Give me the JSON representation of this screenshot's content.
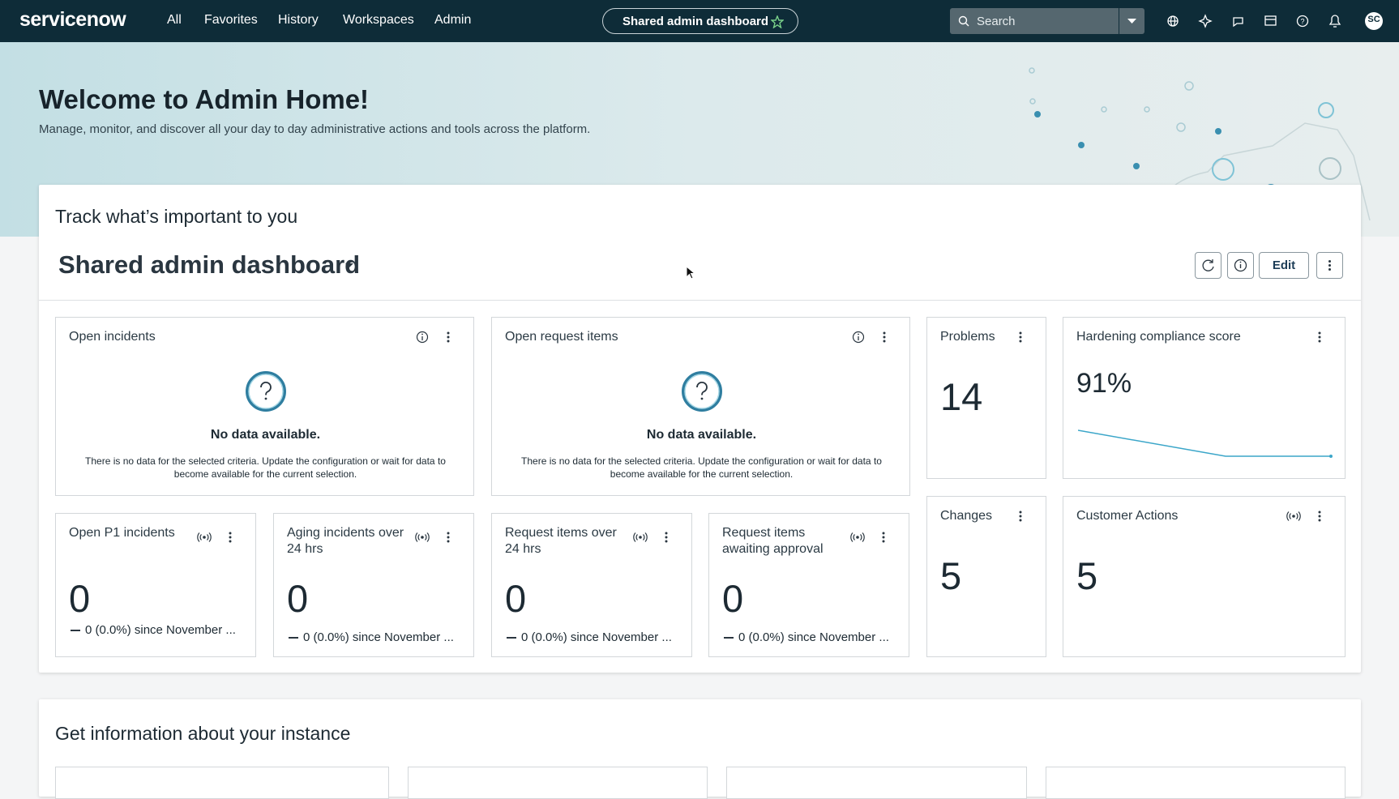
{
  "nav": {
    "logo": "servicenow",
    "menu": [
      "All",
      "Favorites",
      "History",
      "Workspaces",
      "Admin"
    ],
    "current_page": "Shared admin dashboard",
    "search_placeholder": "Search",
    "avatar": "SC"
  },
  "hero": {
    "title": "Welcome to Admin Home!",
    "subtitle": "Manage, monitor, and discover all your day to day administrative actions and tools across the platform."
  },
  "tracking": {
    "heading": "Track what’s important to you",
    "dashboard_name": "Shared admin dashboard",
    "edit_button": "Edit",
    "widgets": [
      {
        "title": "Open incidents",
        "empty_heading": "No data available.",
        "empty_message": "There is no data for the selected criteria. Update the configuration or wait for data to become available for the current selection."
      },
      {
        "title": "Open request items",
        "empty_heading": "No data available.",
        "empty_message": "There is no data for the selected criteria. Update the configuration or wait for data to become available for the current selection."
      },
      {
        "title": "Problems",
        "value": "14"
      },
      {
        "title": "Hardening compliance score",
        "value": "91%"
      },
      {
        "title": "Open P1 incidents",
        "value": "0",
        "footer": "0 (0.0%) since November ..."
      },
      {
        "title": "Aging incidents over 24 hrs",
        "value": "0",
        "footer": "0 (0.0%) since November ..."
      },
      {
        "title": "Request items over 24 hrs",
        "value": "0",
        "footer": "0 (0.0%) since November ..."
      },
      {
        "title": "Request items awaiting approval",
        "value": "0",
        "footer": "0 (0.0%) since November ..."
      },
      {
        "title": "Changes",
        "value": "5"
      },
      {
        "title": "Customer Actions",
        "value": "5"
      }
    ]
  },
  "instance": {
    "heading": "Get information about your instance"
  }
}
